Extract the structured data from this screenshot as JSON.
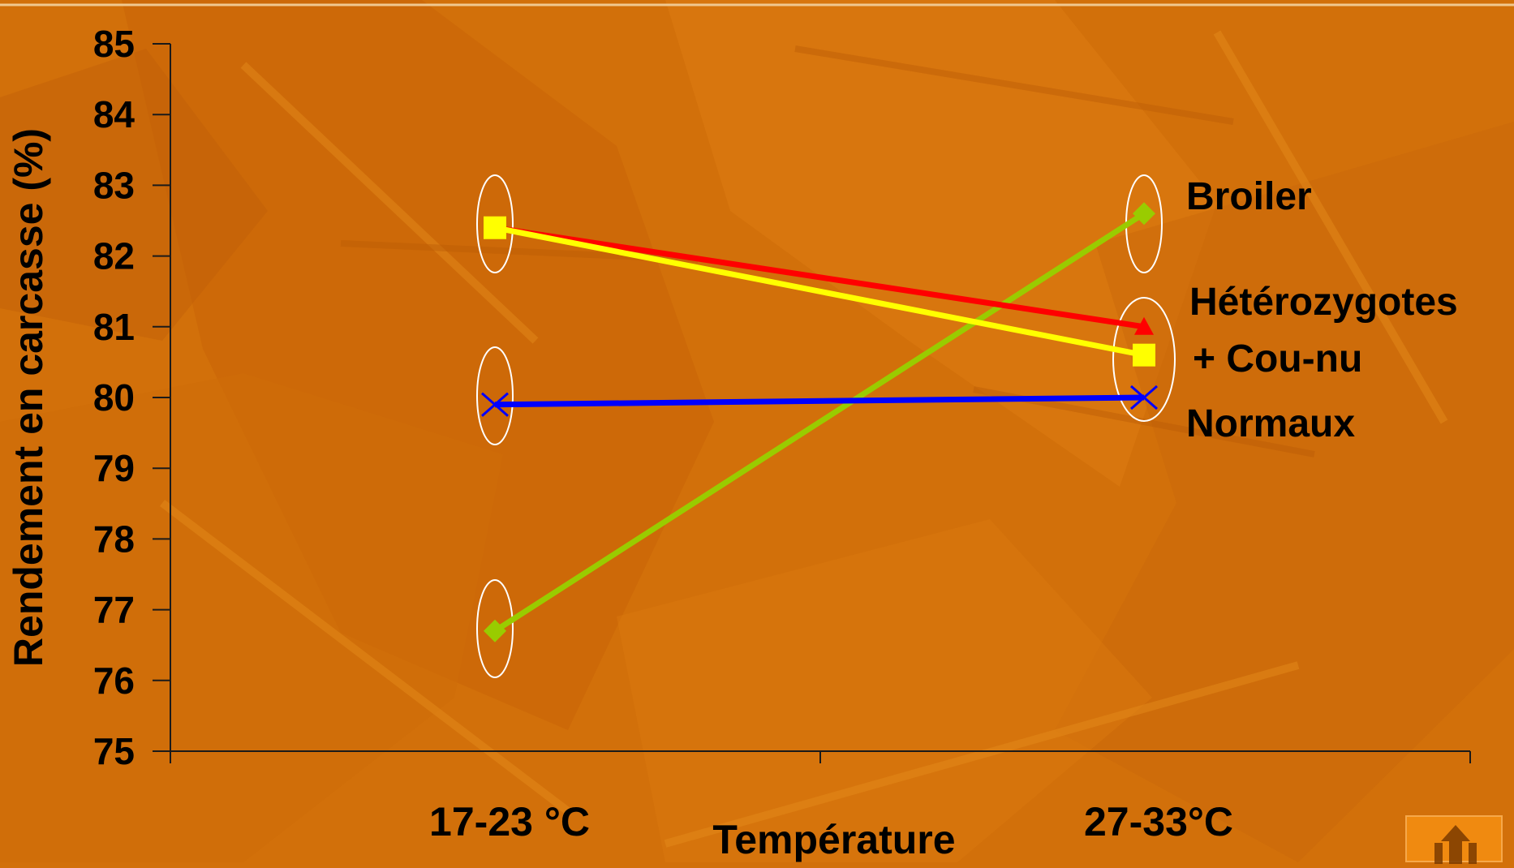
{
  "chart_data": {
    "type": "line",
    "xlabel": "Température",
    "ylabel": "Rendement en carcasse (%)",
    "categories": [
      "17-23 °C",
      "27-33°C"
    ],
    "ylim": [
      75,
      85
    ],
    "yticks": [
      75,
      76,
      77,
      78,
      79,
      80,
      81,
      82,
      83,
      84,
      85
    ],
    "grid": false,
    "series": [
      {
        "name": "Broiler",
        "values": [
          76.7,
          82.6
        ],
        "color": "#99cc00",
        "marker": "diamond"
      },
      {
        "name": "",
        "values": [
          82.4,
          81.0
        ],
        "color": "#ff0000",
        "marker": "triangle"
      },
      {
        "name": "",
        "values": [
          82.4,
          80.6
        ],
        "color": "#ffff00",
        "marker": "square"
      },
      {
        "name": "Normaux",
        "values": [
          79.9,
          80.0
        ],
        "color": "#0000ff",
        "marker": "x"
      }
    ],
    "annotations": [
      "Broiler",
      "Hétérozygotes",
      "+ Cou-nu",
      "Normaux"
    ]
  },
  "colors": {
    "background": "#d2700a",
    "axis": "#1a1a1a",
    "ellipse": "#ffffff",
    "nav_button": "#f08a10"
  },
  "nav": {
    "icon": "return-arrow-icon"
  }
}
